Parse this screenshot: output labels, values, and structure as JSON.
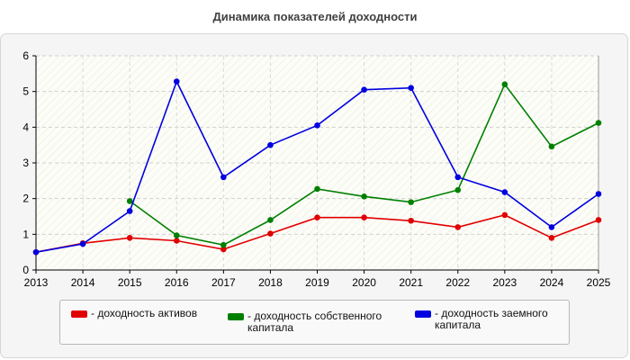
{
  "chart_data": {
    "type": "line",
    "title": "Динамика показателей доходности",
    "x": [
      "2013",
      "2014",
      "2015",
      "2016",
      "2017",
      "2018",
      "2019",
      "2020",
      "2021",
      "2022",
      "2023",
      "2024",
      "2025"
    ],
    "ylim": [
      0,
      6
    ],
    "yticks": [
      "0",
      "1",
      "2",
      "3",
      "4",
      "5",
      "6"
    ],
    "grid": true,
    "legend_position": "bottom",
    "series": [
      {
        "name": "- доходность активов",
        "color": "#e00000",
        "values": [
          0.5,
          0.75,
          0.9,
          0.82,
          0.58,
          1.02,
          1.47,
          1.47,
          1.38,
          1.2,
          1.54,
          0.9,
          1.4
        ]
      },
      {
        "name": "- доходность собственного капитала",
        "color": "#008000",
        "values": [
          null,
          null,
          1.93,
          0.97,
          0.7,
          1.4,
          2.27,
          2.06,
          1.9,
          2.24,
          5.2,
          3.46,
          4.12
        ]
      },
      {
        "name": "- доходность заемного капитала",
        "color": "#0000e0",
        "values": [
          0.5,
          0.73,
          1.65,
          5.28,
          2.6,
          3.5,
          4.05,
          5.05,
          5.1,
          2.6,
          2.18,
          1.2,
          2.13
        ]
      }
    ]
  }
}
